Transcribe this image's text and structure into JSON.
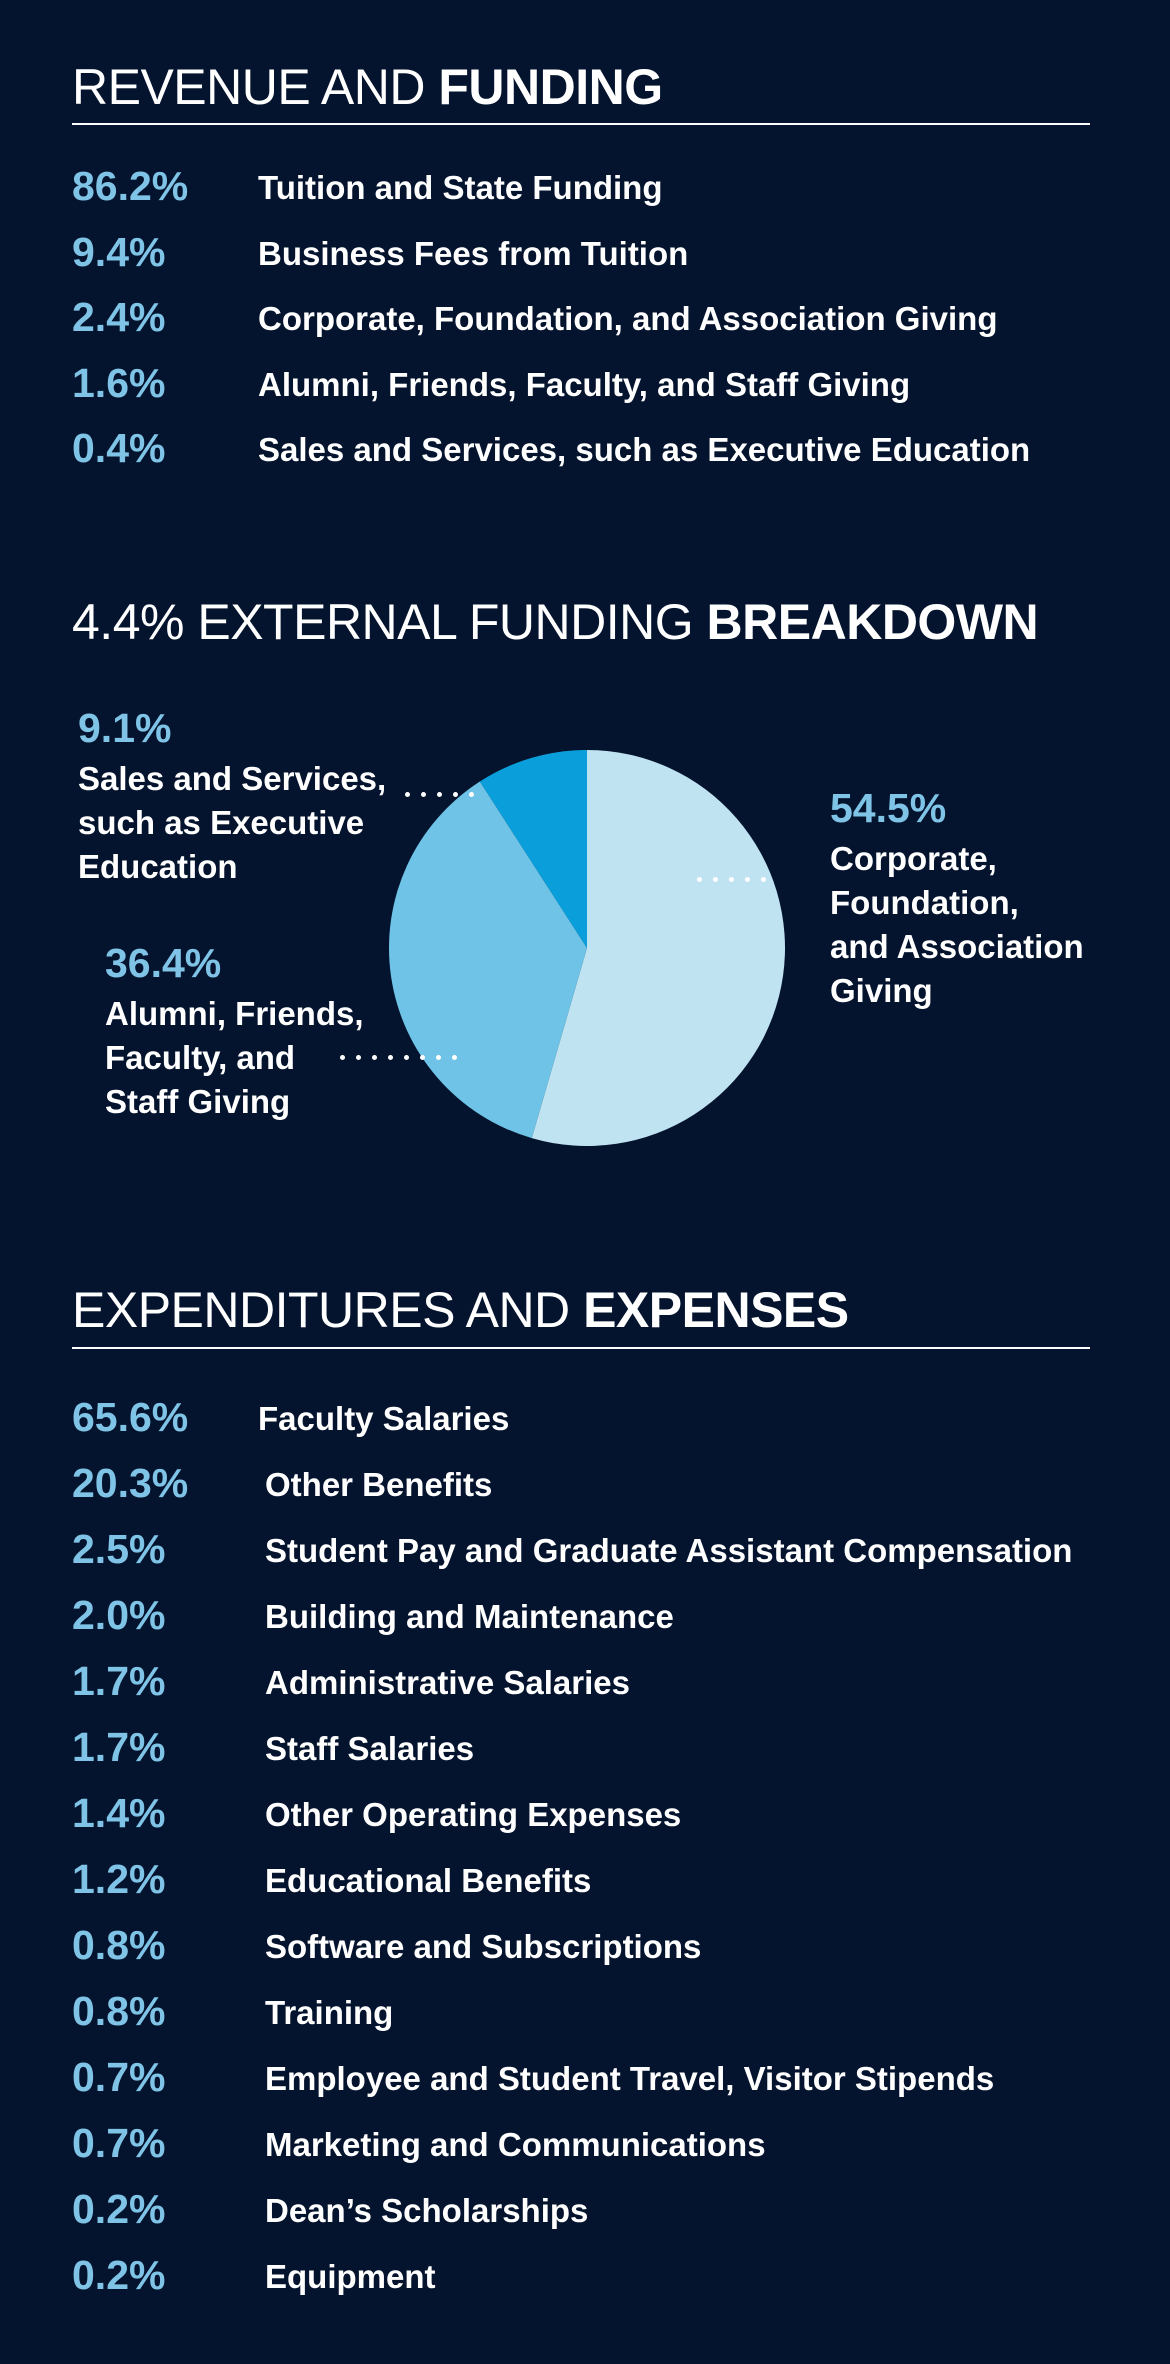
{
  "revenue": {
    "title_light": "REVENUE AND",
    "title_bold": "FUNDING",
    "items": [
      {
        "pct": "86.2%",
        "label": "Tuition and State Funding"
      },
      {
        "pct": "9.4%",
        "label": "Business Fees from Tuition"
      },
      {
        "pct": "2.4%",
        "label": "Corporate, Foundation, and Association Giving"
      },
      {
        "pct": "1.6%",
        "label": "Alumni, Friends, Faculty, and Staff Giving"
      },
      {
        "pct": "0.4%",
        "label": "Sales and Services, such as Executive Education"
      }
    ]
  },
  "external": {
    "title_light": "4.4% EXTERNAL FUNDING",
    "title_bold": "BREAKDOWN",
    "callouts": {
      "sales": {
        "pct": "9.1%",
        "text": "Sales and Services,\nsuch as Executive\nEducation"
      },
      "alumni": {
        "pct": "36.4%",
        "text": "Alumni, Friends,\nFaculty, and\nStaff Giving"
      },
      "corporate": {
        "pct": "54.5%",
        "text": "Corporate,\nFoundation,\nand Association\nGiving"
      }
    }
  },
  "expenses": {
    "title_light": "EXPENDITURES AND",
    "title_bold": "EXPENSES",
    "items": [
      {
        "pct": "65.6%",
        "label": "Faculty Salaries"
      },
      {
        "pct": "20.3%",
        "label": "Other Benefits"
      },
      {
        "pct": "2.5%",
        "label": "Student Pay and Graduate Assistant Compensation"
      },
      {
        "pct": "2.0%",
        "label": "Building and Maintenance"
      },
      {
        "pct": "1.7%",
        "label": "Administrative Salaries"
      },
      {
        "pct": "1.7%",
        "label": "Staff Salaries"
      },
      {
        "pct": "1.4%",
        "label": "Other Operating Expenses"
      },
      {
        "pct": "1.2%",
        "label": "Educational Benefits"
      },
      {
        "pct": "0.8%",
        "label": "Software and Subscriptions"
      },
      {
        "pct": "0.8%",
        "label": "Training"
      },
      {
        "pct": "0.7%",
        "label": "Employee and Student Travel, Visitor Stipends"
      },
      {
        "pct": "0.7%",
        "label": "Marketing and Communications"
      },
      {
        "pct": "0.2%",
        "label": "Dean’s Scholarships"
      },
      {
        "pct": "0.2%",
        "label": "Equipment"
      }
    ]
  },
  "chart_data": {
    "type": "pie",
    "categories": [
      "Corporate, Foundation, and Association Giving",
      "Alumni, Friends, Faculty, and Staff Giving",
      "Sales and Services, such as Executive Education"
    ],
    "values": [
      54.5,
      36.4,
      9.1
    ],
    "colors": [
      "#bfe3f1",
      "#6fc3e6",
      "#0a9fdb"
    ],
    "start": "12 o'clock",
    "direction": "clockwise",
    "legend": "none"
  },
  "colors": {
    "background": "#05142e",
    "accent": "#7fc4e7",
    "text": "#ffffff"
  }
}
